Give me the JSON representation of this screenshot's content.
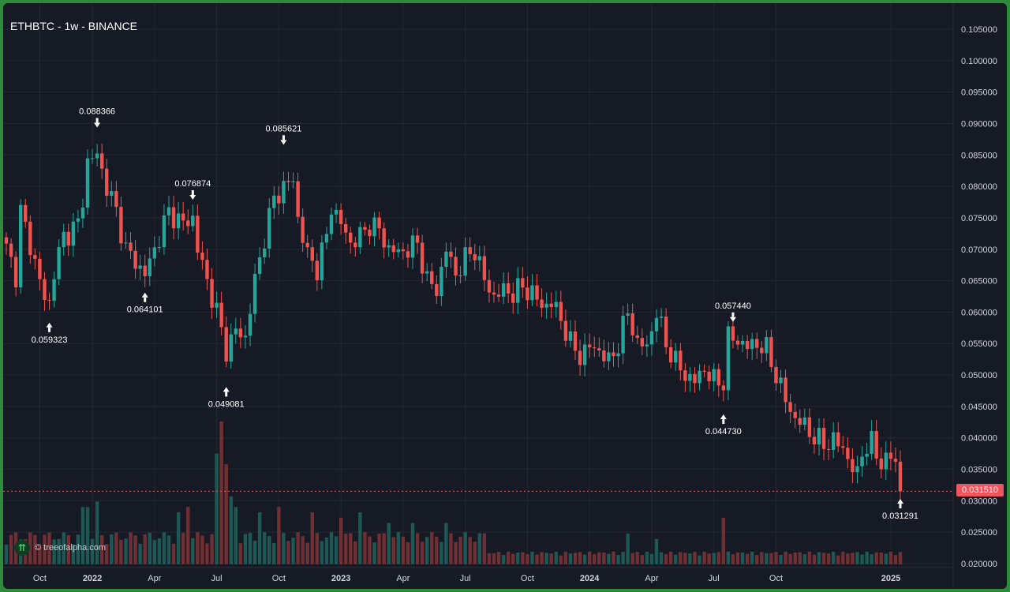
{
  "title": "ETHBTC - 1w - BINANCE",
  "watermark": "© treeofalpha.com",
  "last_price_label": "0.031510",
  "colors": {
    "up": "#26a69a",
    "down": "#ef5350",
    "background": "#161a25",
    "grid": "#232734",
    "text": "#d1d4dc",
    "frame": "#2e8b3a"
  },
  "chart_data": {
    "type": "candlestick",
    "title": "ETHBTC - 1w - BINANCE",
    "x_tick_labels": [
      "Oct",
      "2022",
      "Apr",
      "Jul",
      "Oct",
      "2023",
      "Apr",
      "Jul",
      "Oct",
      "2024",
      "Apr",
      "Jul",
      "Oct",
      "2025"
    ],
    "y_tick_labels": [
      "0.105000",
      "0.100000",
      "0.095000",
      "0.090000",
      "0.085000",
      "0.080000",
      "0.075000",
      "0.070000",
      "0.065000",
      "0.060000",
      "0.055000",
      "0.050000",
      "0.045000",
      "0.040000",
      "0.035000",
      "0.030000",
      "0.025000",
      "0.020000"
    ],
    "ylim": [
      0.02,
      0.107
    ],
    "last_price": 0.03151,
    "annotations": [
      {
        "label": "0.088366",
        "type": "high",
        "week": 19
      },
      {
        "label": "0.059323",
        "type": "low",
        "week": 9
      },
      {
        "label": "0.064101",
        "type": "low",
        "week": 29
      },
      {
        "label": "0.076874",
        "type": "high",
        "week": 39
      },
      {
        "label": "0.049081",
        "type": "low",
        "week": 46
      },
      {
        "label": "0.085621",
        "type": "high",
        "week": 58
      },
      {
        "label": "0.057440",
        "type": "high",
        "week": 152
      },
      {
        "label": "0.044730",
        "type": "low",
        "week": 150
      },
      {
        "label": "0.031291",
        "type": "low",
        "week": 187
      }
    ],
    "anchors": [
      [
        0,
        0.07
      ],
      [
        2,
        0.066
      ],
      [
        3,
        0.076
      ],
      [
        6,
        0.068
      ],
      [
        8,
        0.062
      ],
      [
        9,
        0.0615
      ],
      [
        10,
        0.0665
      ],
      [
        12,
        0.072
      ],
      [
        15,
        0.074
      ],
      [
        16,
        0.078
      ],
      [
        17,
        0.084
      ],
      [
        19,
        0.085
      ],
      [
        21,
        0.08
      ],
      [
        23,
        0.076
      ],
      [
        25,
        0.07
      ],
      [
        27,
        0.068
      ],
      [
        29,
        0.066
      ],
      [
        31,
        0.07
      ],
      [
        34,
        0.076
      ],
      [
        37,
        0.074
      ],
      [
        39,
        0.075
      ],
      [
        40,
        0.07
      ],
      [
        42,
        0.065
      ],
      [
        44,
        0.06
      ],
      [
        46,
        0.054
      ],
      [
        48,
        0.057
      ],
      [
        50,
        0.056
      ],
      [
        52,
        0.065
      ],
      [
        54,
        0.072
      ],
      [
        56,
        0.078
      ],
      [
        58,
        0.08
      ],
      [
        60,
        0.081
      ],
      [
        61,
        0.075
      ],
      [
        63,
        0.069
      ],
      [
        65,
        0.067
      ],
      [
        67,
        0.072
      ],
      [
        68,
        0.077
      ],
      [
        70,
        0.074
      ],
      [
        72,
        0.071
      ],
      [
        74,
        0.072
      ],
      [
        76,
        0.074
      ],
      [
        78,
        0.073
      ],
      [
        80,
        0.07
      ],
      [
        82,
        0.0695
      ],
      [
        84,
        0.07
      ],
      [
        86,
        0.071
      ],
      [
        88,
        0.065
      ],
      [
        90,
        0.0635
      ],
      [
        92,
        0.07
      ],
      [
        94,
        0.066
      ],
      [
        96,
        0.0685
      ],
      [
        98,
        0.07
      ],
      [
        100,
        0.065
      ],
      [
        102,
        0.0625
      ],
      [
        104,
        0.0635
      ],
      [
        106,
        0.063
      ],
      [
        108,
        0.064
      ],
      [
        110,
        0.063
      ],
      [
        112,
        0.061
      ],
      [
        114,
        0.0615
      ],
      [
        116,
        0.059
      ],
      [
        118,
        0.055
      ],
      [
        120,
        0.053
      ],
      [
        122,
        0.0545
      ],
      [
        124,
        0.054
      ],
      [
        126,
        0.052
      ],
      [
        128,
        0.055
      ],
      [
        130,
        0.06
      ],
      [
        132,
        0.055
      ],
      [
        134,
        0.0545
      ],
      [
        136,
        0.06
      ],
      [
        138,
        0.055
      ],
      [
        140,
        0.052
      ],
      [
        142,
        0.05
      ],
      [
        144,
        0.049
      ],
      [
        146,
        0.051
      ],
      [
        148,
        0.049
      ],
      [
        150,
        0.049
      ],
      [
        151,
        0.056
      ],
      [
        153,
        0.0555
      ],
      [
        155,
        0.0545
      ],
      [
        157,
        0.055
      ],
      [
        159,
        0.054
      ],
      [
        161,
        0.05
      ],
      [
        163,
        0.046
      ],
      [
        165,
        0.043
      ],
      [
        167,
        0.042
      ],
      [
        169,
        0.04
      ],
      [
        171,
        0.039
      ],
      [
        173,
        0.0395
      ],
      [
        175,
        0.0385
      ],
      [
        177,
        0.035
      ],
      [
        178,
        0.034
      ],
      [
        179,
        0.038
      ],
      [
        181,
        0.039
      ],
      [
        183,
        0.036
      ],
      [
        185,
        0.037
      ],
      [
        186,
        0.036
      ],
      [
        187,
        0.0315
      ]
    ],
    "volume_spikes": [
      [
        44,
        0.1
      ],
      [
        45,
        0.13
      ],
      [
        46,
        0.09
      ],
      [
        47,
        0.06
      ],
      [
        48,
        0.05
      ],
      [
        16,
        0.05
      ],
      [
        17,
        0.05
      ],
      [
        19,
        0.055
      ],
      [
        36,
        0.045
      ],
      [
        38,
        0.05
      ],
      [
        53,
        0.045
      ],
      [
        57,
        0.05
      ],
      [
        64,
        0.045
      ],
      [
        70,
        0.04
      ],
      [
        74,
        0.045
      ],
      [
        80,
        0.035
      ],
      [
        85,
        0.035
      ],
      [
        92,
        0.035
      ],
      [
        150,
        0.04
      ],
      [
        130,
        0.025
      ],
      [
        136,
        0.02
      ]
    ]
  }
}
